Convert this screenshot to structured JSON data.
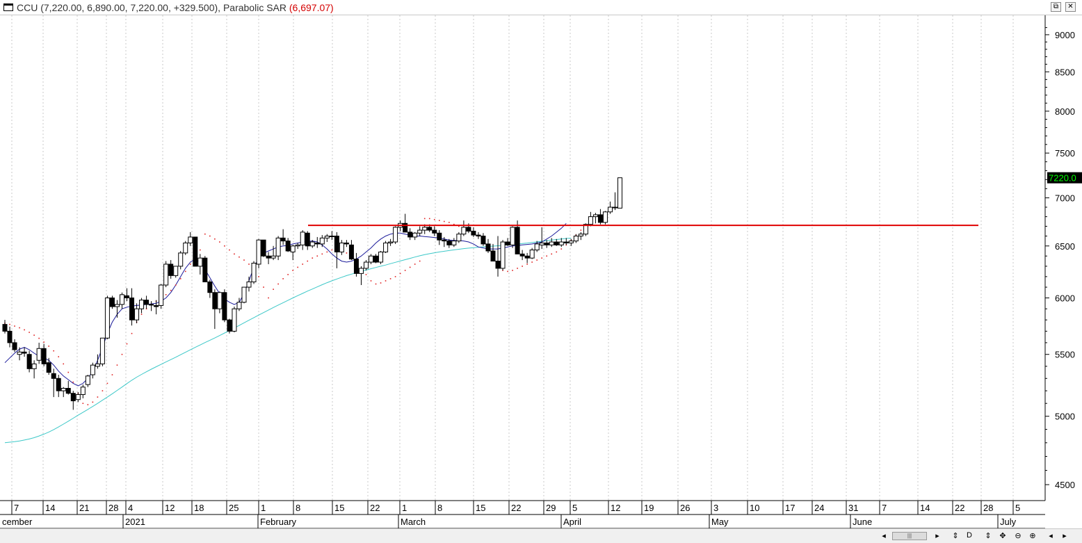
{
  "header": {
    "symbol": "CCU",
    "ohlc": "(7,220.00, 6,890.00, 7,220.00, +329.500),",
    "indicator": "Parabolic SAR",
    "indicator_value": "(6,697.07)"
  },
  "scroll_controls": [
    "◂",
    "▸",
    "⇕",
    "D",
    "⇕",
    "✥",
    "⊖",
    "⊕",
    "◂",
    "▸"
  ],
  "chart_data": {
    "type": "candlestick",
    "title": "",
    "y_scale": "log",
    "ylim": [
      4450,
      9150
    ],
    "y_ticks": [
      4500,
      5000,
      5500,
      6000,
      6500,
      7000,
      7500,
      8000,
      8500,
      9000
    ],
    "last_price_label": "7220.0",
    "resistance_level": 6710,
    "x_day_labels": [
      "7",
      "14",
      "21",
      "28",
      "4",
      "12",
      "18",
      "25",
      "1",
      "8",
      "15",
      "22",
      "1",
      "8",
      "15",
      "22",
      "29",
      "5",
      "12",
      "19",
      "26",
      "3",
      "10",
      "17",
      "24",
      "31",
      "7",
      "14",
      "22",
      "28",
      "5"
    ],
    "x_month_labels": [
      "cember",
      "2021",
      "February",
      "March",
      "April",
      "May",
      "June",
      "July"
    ],
    "grid": "vertical dotted",
    "candles": [
      [
        5760,
        5800,
        5680,
        5700
      ],
      [
        5700,
        5740,
        5560,
        5600
      ],
      [
        5600,
        5630,
        5520,
        5540
      ],
      [
        5500,
        5560,
        5450,
        5520
      ],
      [
        5520,
        5560,
        5480,
        5510
      ],
      [
        5500,
        5530,
        5350,
        5380
      ],
      [
        5380,
        5450,
        5300,
        5420
      ],
      [
        5450,
        5600,
        5420,
        5550
      ],
      [
        5550,
        5590,
        5400,
        5420
      ],
      [
        5430,
        5470,
        5330,
        5350
      ],
      [
        5340,
        5380,
        5150,
        5300
      ],
      [
        5300,
        5330,
        5150,
        5200
      ],
      [
        5200,
        5230,
        5150,
        5220
      ],
      [
        5220,
        5280,
        5170,
        5180
      ],
      [
        5180,
        5200,
        5050,
        5120
      ],
      [
        5130,
        5190,
        5110,
        5170
      ],
      [
        5170,
        5250,
        5140,
        5230
      ],
      [
        5250,
        5330,
        5230,
        5320
      ],
      [
        5330,
        5430,
        5300,
        5410
      ],
      [
        5400,
        5500,
        5380,
        5420
      ],
      [
        5420,
        5640,
        5400,
        5640
      ],
      [
        5640,
        6020,
        5630,
        6000
      ],
      [
        6000,
        6020,
        5900,
        5920
      ],
      [
        5920,
        5980,
        5820,
        5940
      ],
      [
        5940,
        6050,
        5900,
        6030
      ],
      [
        6020,
        6090,
        5970,
        6000
      ],
      [
        6000,
        6090,
        5750,
        5800
      ],
      [
        5800,
        5950,
        5770,
        5900
      ],
      [
        5900,
        6000,
        5860,
        5980
      ],
      [
        5980,
        6020,
        5900,
        5940
      ],
      [
        5940,
        5970,
        5880,
        5940
      ],
      [
        5930,
        5980,
        5850,
        5920
      ],
      [
        5930,
        6130,
        5900,
        6120
      ],
      [
        6120,
        6350,
        6100,
        6320
      ],
      [
        6320,
        6360,
        6180,
        6210
      ],
      [
        6210,
        6300,
        6190,
        6300
      ],
      [
        6300,
        6450,
        6270,
        6430
      ],
      [
        6430,
        6550,
        6410,
        6530
      ],
      [
        6530,
        6640,
        6500,
        6590
      ],
      [
        6590,
        6590,
        6300,
        6300
      ],
      [
        6300,
        6420,
        6220,
        6380
      ],
      [
        6380,
        6400,
        6150,
        6150
      ],
      [
        6150,
        6170,
        6000,
        6050
      ],
      [
        6050,
        6080,
        5720,
        5900
      ],
      [
        5900,
        6060,
        5860,
        6050
      ],
      [
        6050,
        6080,
        5780,
        5800
      ],
      [
        5800,
        5810,
        5680,
        5700
      ],
      [
        5700,
        5920,
        5690,
        5900
      ],
      [
        5900,
        6000,
        5880,
        5960
      ],
      [
        5960,
        6100,
        5950,
        6100
      ],
      [
        6100,
        6200,
        6060,
        6150
      ],
      [
        6150,
        6350,
        6130,
        6330
      ],
      [
        6320,
        6570,
        6280,
        6560
      ],
      [
        6560,
        6560,
        6390,
        6400
      ],
      [
        6400,
        6440,
        6320,
        6380
      ],
      [
        6380,
        6500,
        6360,
        6400
      ],
      [
        6400,
        6600,
        6360,
        6580
      ],
      [
        6580,
        6670,
        6510,
        6550
      ],
      [
        6550,
        6580,
        6440,
        6450
      ],
      [
        6440,
        6510,
        6360,
        6500
      ],
      [
        6500,
        6530,
        6470,
        6510
      ],
      [
        6510,
        6660,
        6460,
        6640
      ],
      [
        6630,
        6650,
        6460,
        6500
      ],
      [
        6500,
        6560,
        6480,
        6540
      ],
      [
        6530,
        6590,
        6480,
        6520
      ],
      [
        6520,
        6610,
        6490,
        6580
      ],
      [
        6580,
        6620,
        6540,
        6600
      ],
      [
        6600,
        6650,
        6560,
        6600
      ],
      [
        6600,
        6640,
        6280,
        6440
      ],
      [
        6440,
        6560,
        6410,
        6530
      ],
      [
        6530,
        6560,
        6490,
        6520
      ],
      [
        6510,
        6560,
        6360,
        6370
      ],
      [
        6370,
        6430,
        6200,
        6230
      ],
      [
        6230,
        6300,
        6120,
        6280
      ],
      [
        6280,
        6360,
        6260,
        6340
      ],
      [
        6340,
        6420,
        6320,
        6400
      ],
      [
        6400,
        6420,
        6330,
        6340
      ],
      [
        6340,
        6450,
        6320,
        6440
      ],
      [
        6440,
        6550,
        6430,
        6530
      ],
      [
        6530,
        6570,
        6500,
        6540
      ],
      [
        6540,
        6700,
        6520,
        6690
      ],
      [
        6690,
        6760,
        6650,
        6730
      ],
      [
        6730,
        6830,
        6640,
        6640
      ],
      [
        6640,
        6680,
        6560,
        6590
      ],
      [
        6590,
        6640,
        6560,
        6630
      ],
      [
        6630,
        6700,
        6600,
        6660
      ],
      [
        6660,
        6720,
        6620,
        6690
      ],
      [
        6690,
        6720,
        6640,
        6660
      ],
      [
        6660,
        6700,
        6600,
        6630
      ],
      [
        6630,
        6660,
        6510,
        6560
      ],
      [
        6560,
        6590,
        6490,
        6550
      ],
      [
        6550,
        6570,
        6480,
        6510
      ],
      [
        6510,
        6580,
        6490,
        6550
      ],
      [
        6550,
        6640,
        6530,
        6620
      ],
      [
        6620,
        6760,
        6600,
        6690
      ],
      [
        6690,
        6730,
        6630,
        6650
      ],
      [
        6650,
        6690,
        6590,
        6610
      ],
      [
        6610,
        6640,
        6570,
        6600
      ],
      [
        6600,
        6630,
        6500,
        6520
      ],
      [
        6520,
        6570,
        6430,
        6450
      ],
      [
        6450,
        6520,
        6350,
        6350
      ],
      [
        6350,
        6600,
        6200,
        6280
      ],
      [
        6280,
        6560,
        6260,
        6540
      ],
      [
        6540,
        6580,
        6500,
        6510
      ],
      [
        6510,
        6700,
        6480,
        6690
      ],
      [
        6690,
        6760,
        6420,
        6420
      ],
      [
        6420,
        6460,
        6360,
        6400
      ],
      [
        6400,
        6430,
        6330,
        6380
      ],
      [
        6380,
        6480,
        6370,
        6460
      ],
      [
        6460,
        6550,
        6440,
        6520
      ],
      [
        6510,
        6690,
        6470,
        6530
      ],
      [
        6530,
        6560,
        6480,
        6510
      ],
      [
        6510,
        6580,
        6490,
        6540
      ],
      [
        6540,
        6570,
        6500,
        6510
      ],
      [
        6510,
        6580,
        6490,
        6540
      ],
      [
        6540,
        6580,
        6510,
        6530
      ],
      [
        6530,
        6570,
        6500,
        6550
      ],
      [
        6550,
        6620,
        6530,
        6600
      ],
      [
        6600,
        6640,
        6560,
        6620
      ],
      [
        6620,
        6730,
        6600,
        6720
      ],
      [
        6720,
        6850,
        6700,
        6800
      ],
      [
        6800,
        6840,
        6730,
        6820
      ],
      [
        6820,
        6880,
        6720,
        6740
      ],
      [
        6740,
        6860,
        6720,
        6850
      ],
      [
        6850,
        6960,
        6830,
        6900
      ],
      [
        6900,
        7060,
        6870,
        6900
      ],
      [
        6890,
        7220,
        6890,
        7220
      ]
    ],
    "sma_short": [
      5430,
      5470,
      5510,
      5545,
      5560,
      5540,
      5510,
      5485,
      5470,
      5450,
      5410,
      5360,
      5320,
      5290,
      5260,
      5240,
      5260,
      5300,
      5360,
      5450,
      5560,
      5680,
      5780,
      5850,
      5900,
      5915,
      5925,
      5930,
      5935,
      5940,
      5945,
      5950,
      5970,
      6000,
      6050,
      6120,
      6200,
      6280,
      6340,
      6370,
      6330,
      6270,
      6190,
      6110,
      6040,
      5990,
      5960,
      5940,
      5960,
      6040,
      6160,
      6290,
      6380,
      6430,
      6450,
      6470,
      6490,
      6500,
      6505,
      6520,
      6530,
      6540,
      6545,
      6550,
      6540,
      6510,
      6470,
      6420,
      6380,
      6350,
      6340,
      6350,
      6370,
      6400,
      6440,
      6480,
      6530,
      6570,
      6600,
      6620,
      6630,
      6630,
      6620,
      6610,
      6600,
      6600,
      6595,
      6590,
      6585,
      6580,
      6570,
      6560,
      6555,
      6555,
      6550,
      6540,
      6520,
      6490,
      6480,
      6470,
      6470,
      6470,
      6480,
      6490,
      6500,
      6505,
      6510,
      6515,
      6520,
      6530,
      6540,
      6570,
      6600,
      6640,
      6680,
      6730
    ],
    "sma_long": [
      4800,
      4804,
      4808,
      4813,
      4820,
      4828,
      4838,
      4850,
      4864,
      4880,
      4898,
      4918,
      4940,
      4962,
      4985,
      5008,
      5030,
      5053,
      5076,
      5100,
      5125,
      5150,
      5176,
      5203,
      5230,
      5258,
      5285,
      5310,
      5333,
      5355,
      5376,
      5396,
      5416,
      5436,
      5456,
      5476,
      5497,
      5518,
      5539,
      5560,
      5580,
      5601,
      5621,
      5641,
      5662,
      5684,
      5706,
      5728,
      5751,
      5774,
      5797,
      5820,
      5843,
      5866,
      5889,
      5912,
      5934,
      5956,
      5978,
      6000,
      6021,
      6042,
      6063,
      6083,
      6103,
      6123,
      6142,
      6160,
      6177,
      6194,
      6210,
      6224,
      6237,
      6250,
      6263,
      6276,
      6288,
      6300,
      6312,
      6325,
      6338,
      6351,
      6364,
      6377,
      6390,
      6402,
      6413,
      6423,
      6432,
      6440,
      6447,
      6454,
      6461,
      6467,
      6473,
      6478,
      6483,
      6487,
      6491,
      6495,
      6498,
      6502,
      6506,
      6510,
      6514,
      6519,
      6524,
      6529,
      6535,
      6541,
      6547,
      6553,
      6559,
      6565,
      6570,
      6575,
      6579
    ],
    "sar": [
      5770,
      5760,
      5745,
      5730,
      5712,
      5690,
      5665,
      5638,
      5605,
      5570,
      5530,
      5480,
      5420,
      5350,
      5270,
      5180,
      5100,
      5090,
      5110,
      5150,
      5200,
      5260,
      5330,
      5410,
      5500,
      5590,
      5680,
      5780,
      5850,
      5900,
      5940,
      5970,
      6000,
      6030,
      6070,
      6120,
      6180,
      6250,
      6320,
      6390,
      6460,
      6620,
      6600,
      6570,
      6540,
      6500,
      6460,
      6420,
      6390,
      6360,
      6320,
      6270,
      6200,
      6100,
      6000,
      6080,
      6130,
      6180,
      6220,
      6260,
      6290,
      6320,
      6350,
      6380,
      6400,
      6420,
      6440,
      6460,
      6470,
      6460,
      6430,
      6390,
      6340,
      6280,
      6220,
      6160,
      6130,
      6140,
      6160,
      6180,
      6200,
      6230,
      6260,
      6290,
      6320,
      6350,
      6780,
      6780,
      6770,
      6760,
      6750,
      6740,
      6720,
      6700,
      6680,
      6660,
      6640,
      6600,
      6560,
      6500,
      6420,
      6300,
      6260,
      6250,
      6260,
      6280,
      6300,
      6320,
      6340,
      6360,
      6380,
      6400,
      6420,
      6440,
      6470,
      6510,
      6560,
      6610,
      6660,
      6697
    ]
  }
}
